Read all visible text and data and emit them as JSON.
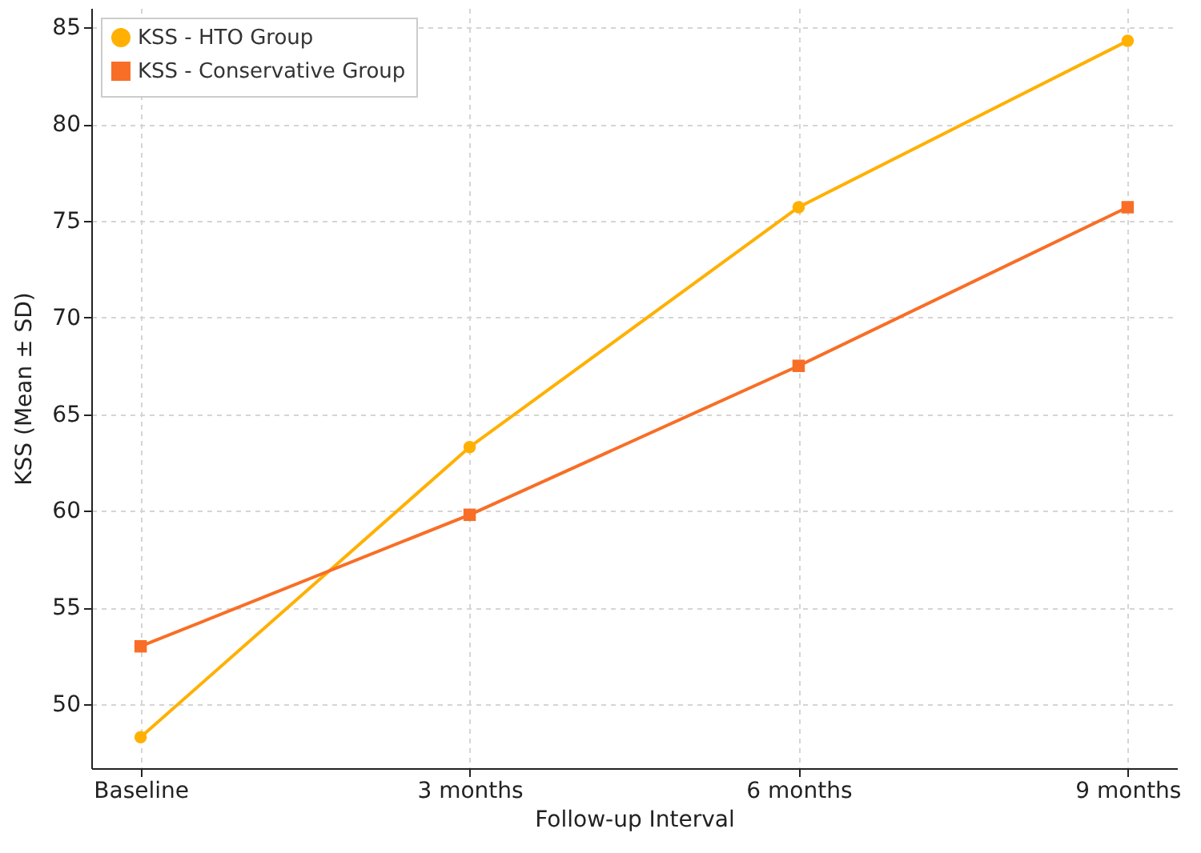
{
  "chart_data": {
    "type": "line",
    "xlabel": "Follow-up Interval",
    "ylabel": "KSS (Mean ± SD)",
    "categories": [
      "Baseline",
      "3 months",
      "6 months",
      "9 months"
    ],
    "series": [
      {
        "name": "KSS - HTO Group",
        "color": "#ffb000",
        "marker": "circle",
        "values": [
          48.3,
          63.3,
          75.7,
          84.3
        ]
      },
      {
        "name": "KSS - Conservative Group",
        "color": "#f86e26",
        "marker": "square",
        "values": [
          53.0,
          59.8,
          67.5,
          75.7
        ]
      }
    ],
    "ylim": [
      46.7,
      86
    ],
    "yticks": [
      50,
      55,
      60,
      65,
      70,
      75,
      80,
      85
    ],
    "grid": true,
    "legend": "top left",
    "line_style": "solid"
  }
}
